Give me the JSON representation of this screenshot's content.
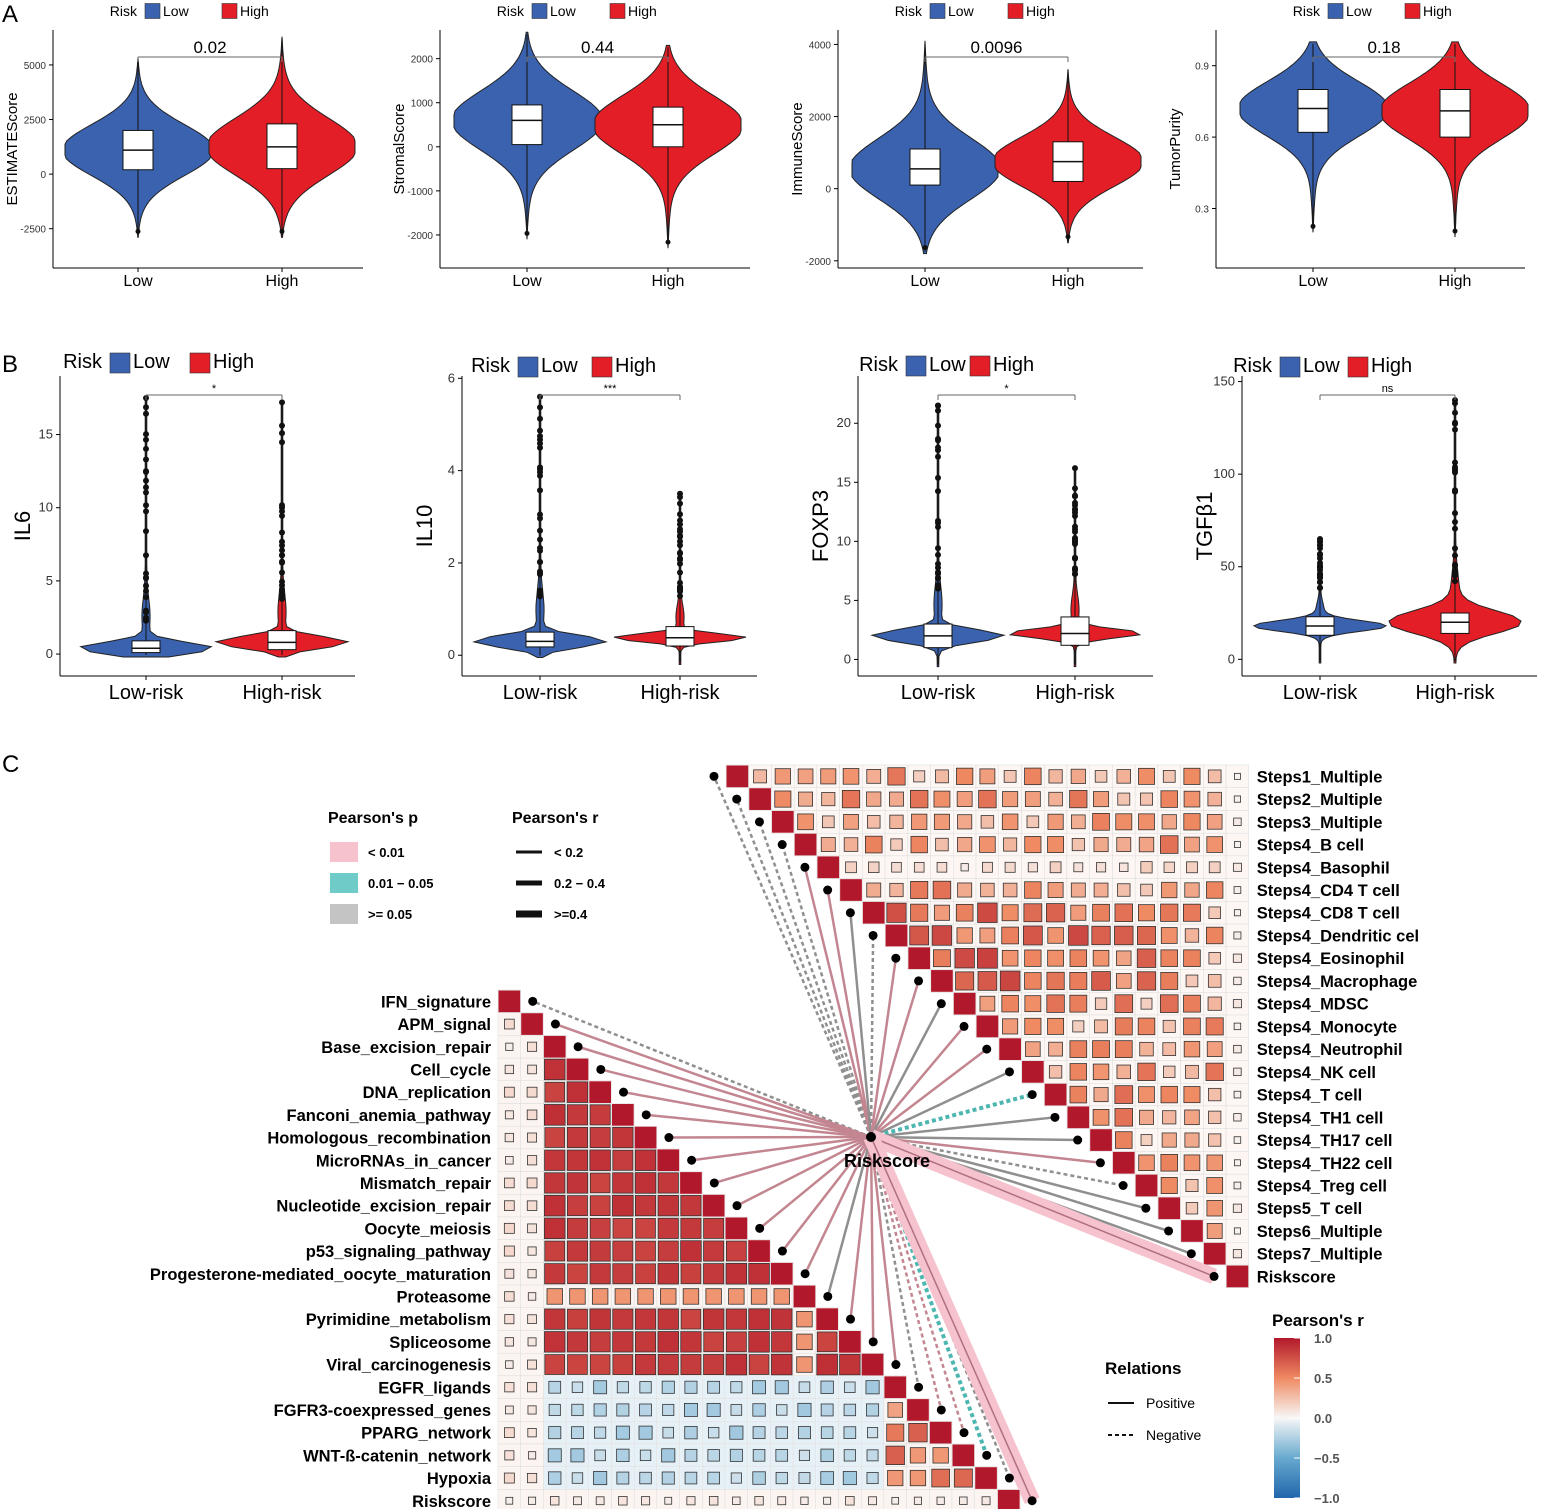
{
  "figure": {
    "panel_labels": [
      "A",
      "B",
      "C"
    ],
    "colors": {
      "low": "#3A62AF",
      "high": "#E41E26",
      "positive_line": "#C78A93",
      "negative_line": "#9B9B9B"
    }
  },
  "chart_data": [
    {
      "type": "violin",
      "panel": "A",
      "legend": {
        "title": "Risk",
        "items": [
          "Low",
          "High"
        ]
      },
      "categories": [
        "Low",
        "High"
      ],
      "ylabel": "ESTIMATEScore",
      "ylim": [
        -4300,
        6600
      ],
      "ticks": [
        -2500,
        0,
        2500,
        5000
      ],
      "pvalue": "0.02",
      "box": [
        {
          "q1": 200,
          "median": 1100,
          "q3": 2000
        },
        {
          "q1": 250,
          "median": 1250,
          "q3": 2300
        }
      ],
      "range": [
        [
          -2900,
          5300
        ],
        [
          -2900,
          6300
        ]
      ]
    },
    {
      "type": "violin",
      "panel": "A",
      "legend": {
        "title": "Risk",
        "items": [
          "Low",
          "High"
        ]
      },
      "categories": [
        "Low",
        "High"
      ],
      "ylabel": "StromalScore",
      "ylim": [
        -2750,
        2650
      ],
      "ticks": [
        -2000,
        -1000,
        0,
        1000,
        2000
      ],
      "pvalue": "0.44",
      "box": [
        {
          "q1": 50,
          "median": 600,
          "q3": 950
        },
        {
          "q1": 0,
          "median": 500,
          "q3": 900
        }
      ],
      "range": [
        [
          -2100,
          2600
        ],
        [
          -2300,
          2300
        ]
      ]
    },
    {
      "type": "violin",
      "panel": "A",
      "legend": {
        "title": "Risk",
        "items": [
          "Low",
          "High"
        ]
      },
      "categories": [
        "Low",
        "High"
      ],
      "ylabel": "ImmuneScore",
      "ylim": [
        -2200,
        4400
      ],
      "ticks": [
        -2000,
        0,
        2000,
        4000
      ],
      "pvalue": "0.0096",
      "box": [
        {
          "q1": 100,
          "median": 550,
          "q3": 1100
        },
        {
          "q1": 200,
          "median": 750,
          "q3": 1300
        }
      ],
      "range": [
        [
          -1800,
          4100
        ],
        [
          -1500,
          3300
        ]
      ]
    },
    {
      "type": "violin",
      "panel": "A",
      "legend": {
        "title": "Risk",
        "items": [
          "Low",
          "High"
        ]
      },
      "categories": [
        "Low",
        "High"
      ],
      "ylabel": "TumorPurity",
      "ylim": [
        0.05,
        1.05
      ],
      "ticks": [
        0.3,
        0.6,
        0.9
      ],
      "pvalue": "0.18",
      "box": [
        {
          "q1": 0.62,
          "median": 0.72,
          "q3": 0.8
        },
        {
          "q1": 0.6,
          "median": 0.71,
          "q3": 0.8
        }
      ],
      "range": [
        [
          0.2,
          1.0
        ],
        [
          0.18,
          1.0
        ]
      ]
    },
    {
      "type": "violin",
      "panel": "B",
      "legend": {
        "title": "Risk",
        "items": [
          "Low",
          "High"
        ]
      },
      "categories": [
        "Low-risk",
        "High-risk"
      ],
      "ylabel": "IL6",
      "ylim": [
        -1.5,
        19
      ],
      "ticks": [
        0,
        5,
        10,
        15
      ],
      "pvalue": "*",
      "box": [
        {
          "q1": 0.1,
          "median": 0.4,
          "q3": 0.9
        },
        {
          "q1": 0.3,
          "median": 0.8,
          "q3": 1.6
        }
      ],
      "range": [
        [
          -0.2,
          17.5
        ],
        [
          -0.2,
          17.2
        ]
      ]
    },
    {
      "type": "violin",
      "panel": "B",
      "legend": {
        "title": "Risk",
        "items": [
          "Low",
          "High"
        ]
      },
      "categories": [
        "Low-risk",
        "High-risk"
      ],
      "ylabel": "IL10",
      "ylim": [
        -0.45,
        6.05
      ],
      "ticks": [
        0,
        2,
        4,
        6
      ],
      "pvalue": "***",
      "box": [
        {
          "q1": 0.18,
          "median": 0.3,
          "q3": 0.5
        },
        {
          "q1": 0.2,
          "median": 0.38,
          "q3": 0.62
        }
      ],
      "range": [
        [
          -0.05,
          5.6
        ],
        [
          -0.2,
          3.5
        ]
      ]
    },
    {
      "type": "violin",
      "panel": "B",
      "legend": {
        "title": "Risk",
        "items": [
          "Low",
          "High"
        ]
      },
      "categories": [
        "Low-risk",
        "High-risk"
      ],
      "ylabel": "FOXP3",
      "ylim": [
        -1.4,
        24
      ],
      "ticks": [
        0,
        5,
        10,
        15,
        20
      ],
      "pvalue": "*",
      "box": [
        {
          "q1": 1.0,
          "median": 2.0,
          "q3": 3.0
        },
        {
          "q1": 1.2,
          "median": 2.2,
          "q3": 3.6
        }
      ],
      "range": [
        [
          -0.6,
          21.5
        ],
        [
          -0.6,
          16.2
        ]
      ]
    },
    {
      "type": "violin",
      "panel": "B",
      "legend": {
        "title": "Risk",
        "items": [
          "Low",
          "High"
        ]
      },
      "categories": [
        "Low-risk",
        "High-risk"
      ],
      "ylabel": "TGFβ1",
      "ylim": [
        -9,
        153
      ],
      "ticks": [
        0,
        50,
        100,
        150
      ],
      "pvalue": "ns",
      "box": [
        {
          "q1": 13,
          "median": 18,
          "q3": 23
        },
        {
          "q1": 14,
          "median": 20,
          "q3": 25
        }
      ],
      "range": [
        [
          -2,
          65
        ],
        [
          -2,
          140
        ]
      ]
    },
    {
      "type": "correlation_network",
      "panel": "C",
      "center_label": "Riskscore",
      "top_labels": [
        "Steps1_Multiple",
        "Steps2_Multiple",
        "Steps3_Multiple",
        "Steps4_B cell",
        "Steps4_Basophil",
        "Steps4_CD4 T cell",
        "Steps4_CD8 T cell",
        "Steps4_Dendritic cel",
        "Steps4_Eosinophil",
        "Steps4_Macrophage",
        "Steps4_MDSC",
        "Steps4_Monocyte",
        "Steps4_Neutrophil",
        "Steps4_NK cell",
        "Steps4_T cell",
        "Steps4_TH1 cell",
        "Steps4_TH17 cell",
        "Steps4_TH22 cell",
        "Steps4_Treg cell",
        "Steps5_T cell",
        "Steps6_Multiple",
        "Steps7_Multiple",
        "Riskscore"
      ],
      "bottom_labels": [
        "IFN_signature",
        "APM_signal",
        "Base_excision_repair",
        "Cell_cycle",
        "DNA_replication",
        "Fanconi_anemia_pathway",
        "Homologous_recombination",
        "MicroRNAs_in_cancer",
        "Mismatch_repair",
        "Nucleotide_excision_repair",
        "Oocyte_meiosis",
        "p53_signaling_pathway",
        "Progesterone-mediated_oocyte_maturation",
        "Proteasome",
        "Pyrimidine_metabolism",
        "Spliceosome",
        "Viral_carcinogenesis",
        "EGFR_ligands",
        "FGFR3-coexpressed_genes",
        "PPARG_network",
        "WNT-ß-catenin_network",
        "Hypoxia",
        "Riskscore"
      ],
      "top_links": [
        {
          "p": ">=0.05",
          "sign": "negative",
          "width": "<0.2"
        },
        {
          "p": ">=0.05",
          "sign": "negative",
          "width": "<0.2"
        },
        {
          "p": ">=0.05",
          "sign": "negative",
          "width": "<0.2"
        },
        {
          "p": ">=0.05",
          "sign": "negative",
          "width": "<0.2"
        },
        {
          "p": "<0.01",
          "sign": "positive",
          "width": "<0.2"
        },
        {
          "p": "<0.01",
          "sign": "positive",
          "width": "<0.2"
        },
        {
          "p": ">=0.05",
          "sign": "positive",
          "width": "<0.2"
        },
        {
          "p": ">=0.05",
          "sign": "negative",
          "width": "<0.2"
        },
        {
          "p": "<0.01",
          "sign": "positive",
          "width": "<0.2"
        },
        {
          "p": "<0.01",
          "sign": "positive",
          "width": "<0.2"
        },
        {
          "p": ">=0.05",
          "sign": "positive",
          "width": "<0.2"
        },
        {
          "p": "<0.01",
          "sign": "positive",
          "width": "<0.2"
        },
        {
          "p": "<0.01",
          "sign": "positive",
          "width": "<0.2"
        },
        {
          "p": ">=0.05",
          "sign": "positive",
          "width": "<0.2"
        },
        {
          "p": "0.01-0.05",
          "sign": "negative",
          "width": "0.2-0.4"
        },
        {
          "p": ">=0.05",
          "sign": "positive",
          "width": "<0.2"
        },
        {
          "p": ">=0.05",
          "sign": "positive",
          "width": "<0.2"
        },
        {
          "p": "<0.01",
          "sign": "positive",
          "width": "<0.2"
        },
        {
          "p": ">=0.05",
          "sign": "negative",
          "width": "<0.2"
        },
        {
          "p": ">=0.05",
          "sign": "positive",
          "width": "<0.2"
        },
        {
          "p": ">=0.05",
          "sign": "positive",
          "width": "<0.2"
        },
        {
          "p": ">=0.05",
          "sign": "positive",
          "width": "<0.2"
        },
        {
          "p": "<0.01",
          "sign": "positive",
          "width": ">=0.4"
        }
      ],
      "bottom_links": [
        {
          "p": ">=0.05",
          "sign": "negative",
          "width": "<0.2"
        },
        {
          "p": "<0.01",
          "sign": "positive",
          "width": "<0.2"
        },
        {
          "p": "<0.01",
          "sign": "positive",
          "width": "<0.2"
        },
        {
          "p": "<0.01",
          "sign": "positive",
          "width": "<0.2"
        },
        {
          "p": "<0.01",
          "sign": "positive",
          "width": "<0.2"
        },
        {
          "p": "<0.01",
          "sign": "positive",
          "width": "<0.2"
        },
        {
          "p": "<0.01",
          "sign": "positive",
          "width": "<0.2"
        },
        {
          "p": "<0.01",
          "sign": "positive",
          "width": "<0.2"
        },
        {
          "p": "<0.01",
          "sign": "positive",
          "width": "<0.2"
        },
        {
          "p": "<0.01",
          "sign": "positive",
          "width": "<0.2"
        },
        {
          "p": "<0.01",
          "sign": "positive",
          "width": "<0.2"
        },
        {
          "p": "<0.01",
          "sign": "positive",
          "width": "<0.2"
        },
        {
          "p": "<0.01",
          "sign": "positive",
          "width": "<0.2"
        },
        {
          "p": ">=0.05",
          "sign": "positive",
          "width": "<0.2"
        },
        {
          "p": "<0.01",
          "sign": "positive",
          "width": "<0.2"
        },
        {
          "p": "<0.01",
          "sign": "positive",
          "width": "<0.2"
        },
        {
          "p": "<0.01",
          "sign": "positive",
          "width": "<0.2"
        },
        {
          "p": ">=0.05",
          "sign": "negative",
          "width": "<0.2"
        },
        {
          "p": "<0.01",
          "sign": "negative",
          "width": "<0.2"
        },
        {
          "p": "<0.01",
          "sign": "negative",
          "width": "<0.2"
        },
        {
          "p": "0.01-0.05",
          "sign": "negative",
          "width": "0.2-0.4"
        },
        {
          "p": ">=0.05",
          "sign": "negative",
          "width": "<0.2"
        },
        {
          "p": "<0.01",
          "sign": "positive",
          "width": ">=0.4"
        }
      ],
      "legend_p": {
        "title": "Pearson's p",
        "items": [
          "< 0.01",
          "0.01 − 0.05",
          ">= 0.05"
        ],
        "colors": [
          "#F5C2CE",
          "#6ECBC8",
          "#C4C4C4"
        ]
      },
      "legend_r": {
        "title": "Pearson's r",
        "items": [
          "< 0.2",
          "0.2 − 0.4",
          ">=0.4"
        ]
      },
      "legend_relations": {
        "title": "Relations",
        "items": [
          "Positive",
          "Negative"
        ]
      },
      "colorbar": {
        "title": "Pearson's r",
        "ticks": [
          "1.0",
          "0.5",
          "0.0",
          "−0.5",
          "−1.0"
        ],
        "range": [
          -1,
          1
        ]
      }
    }
  ]
}
